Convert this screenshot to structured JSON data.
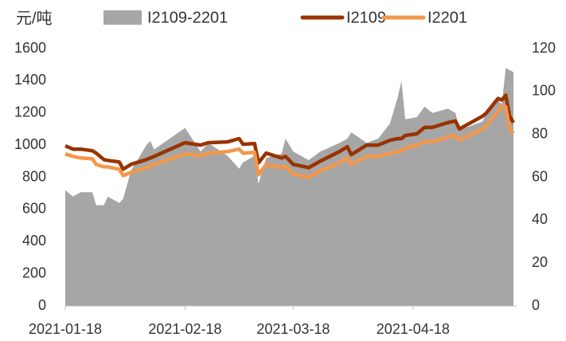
{
  "chart_data": {
    "type": "line",
    "y_label": "元/吨",
    "x": [
      "2021-01-18",
      "2021-01-20",
      "2021-01-22",
      "2021-01-25",
      "2021-01-26",
      "2021-01-28",
      "2021-01-29",
      "2021-02-01",
      "2021-02-02",
      "2021-02-04",
      "2021-02-08",
      "2021-02-09",
      "2021-02-10",
      "2021-02-18",
      "2021-02-22",
      "2021-02-24",
      "2021-03-01",
      "2021-03-04",
      "2021-03-05",
      "2021-03-08",
      "2021-03-09",
      "2021-03-11",
      "2021-03-15",
      "2021-03-16",
      "2021-03-18",
      "2021-03-22",
      "2021-03-25",
      "2021-03-30",
      "2021-04-01",
      "2021-04-02",
      "2021-04-06",
      "2021-04-09",
      "2021-04-12",
      "2021-04-14",
      "2021-04-15",
      "2021-04-16",
      "2021-04-19",
      "2021-04-21",
      "2021-04-23",
      "2021-04-27",
      "2021-04-29",
      "2021-04-30",
      "2021-05-06",
      "2021-05-07",
      "2021-05-10",
      "2021-05-11",
      "2021-05-12",
      "2021-05-13",
      "2021-05-14"
    ],
    "series": [
      {
        "name": "I2109-2201",
        "type": "area",
        "axis": "y2",
        "color": "#a6a6a6",
        "values": [
          54,
          51,
          53,
          53,
          47,
          47,
          51,
          48,
          50,
          63,
          75,
          77,
          73,
          83,
          72,
          76,
          70,
          64,
          67,
          70,
          57,
          69,
          71,
          78,
          72,
          68,
          72,
          76,
          78,
          81,
          76,
          78,
          85,
          97,
          105,
          87,
          88,
          93,
          90,
          92,
          90,
          82,
          86,
          90,
          96,
          94,
          111,
          110,
          109
        ]
      },
      {
        "name": "I2109",
        "axis": "y",
        "color": "#993300",
        "values": [
          995,
          975,
          975,
          965,
          950,
          910,
          905,
          895,
          850,
          880,
          910,
          920,
          930,
          1015,
          1000,
          1015,
          1020,
          1040,
          1005,
          1010,
          890,
          950,
          920,
          930,
          880,
          860,
          900,
          960,
          990,
          940,
          1000,
          1000,
          1030,
          1040,
          1040,
          1060,
          1070,
          1110,
          1110,
          1140,
          1150,
          1100,
          1180,
          1200,
          1290,
          1280,
          1310,
          1180,
          1140
        ]
      },
      {
        "name": "I2201",
        "axis": "y",
        "color": "#f4974a",
        "values": [
          945,
          930,
          920,
          915,
          880,
          865,
          865,
          850,
          810,
          830,
          860,
          870,
          880,
          945,
          935,
          950,
          960,
          975,
          950,
          955,
          815,
          880,
          860,
          870,
          820,
          800,
          840,
          890,
          920,
          880,
          930,
          930,
          950,
          960,
          965,
          980,
          1000,
          1020,
          1020,
          1050,
          1060,
          1030,
          1100,
          1120,
          1210,
          1240,
          1240,
          1100,
          1075
        ]
      }
    ],
    "xlim": [
      "2021-01-18",
      "2021-05-14"
    ],
    "xticks": [
      "2021-01-18",
      "2021-02-18",
      "2021-03-18",
      "2021-04-18"
    ],
    "ylim": [
      0,
      1600
    ],
    "yticks": [
      0,
      200,
      400,
      600,
      800,
      1000,
      1200,
      1400,
      1600
    ],
    "y2lim": [
      0,
      120
    ],
    "y2ticks": [
      0,
      20,
      40,
      60,
      80,
      100,
      120
    ]
  }
}
